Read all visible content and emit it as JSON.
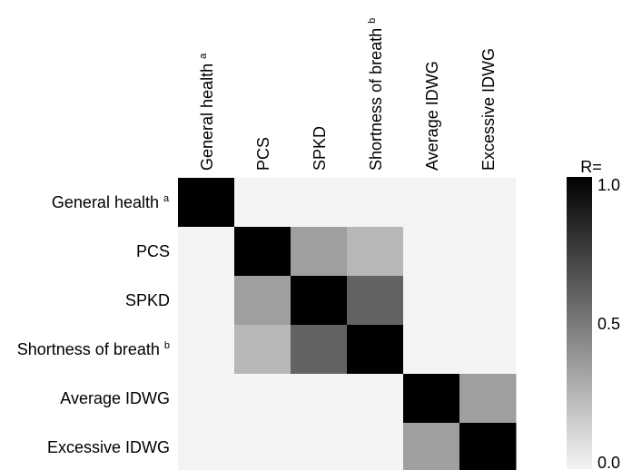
{
  "chart_data": {
    "type": "heatmap",
    "title": "",
    "row_labels": [
      {
        "text": "General health",
        "sup": "a"
      },
      {
        "text": "PCS",
        "sup": ""
      },
      {
        "text": "SPKD",
        "sup": ""
      },
      {
        "text": "Shortness of breath",
        "sup": "b"
      },
      {
        "text": "Average IDWG",
        "sup": ""
      },
      {
        "text": "Excessive IDWG",
        "sup": ""
      }
    ],
    "col_labels": [
      {
        "text": "General health",
        "sup": "a"
      },
      {
        "text": "PCS",
        "sup": ""
      },
      {
        "text": "SPKD",
        "sup": ""
      },
      {
        "text": "Shortness of breath",
        "sup": "b"
      },
      {
        "text": "Average IDWG",
        "sup": ""
      },
      {
        "text": "Excessive IDWG",
        "sup": ""
      }
    ],
    "values": [
      [
        1.0,
        0.0,
        0.0,
        0.0,
        0.0,
        0.0
      ],
      [
        0.0,
        1.0,
        0.35,
        0.25,
        0.0,
        0.0
      ],
      [
        0.0,
        0.35,
        1.0,
        0.6,
        0.0,
        0.0
      ],
      [
        0.0,
        0.25,
        0.6,
        1.0,
        0.0,
        0.0
      ],
      [
        0.0,
        0.0,
        0.0,
        0.0,
        1.0,
        0.35
      ],
      [
        0.0,
        0.0,
        0.0,
        0.0,
        0.35,
        1.0
      ]
    ],
    "colorbar": {
      "label": "R=",
      "ticks": [
        "1.0",
        "0.5",
        "0.0"
      ],
      "range": [
        0.0,
        1.0
      ],
      "color_low": "#f4f4f4",
      "color_high": "#000000"
    }
  }
}
